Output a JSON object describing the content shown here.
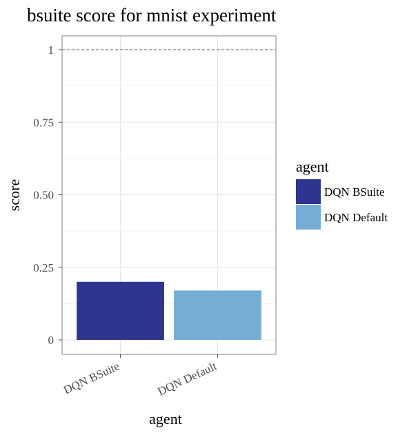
{
  "chart_data": {
    "type": "bar",
    "title": "bsuite score for mnist experiment",
    "xlabel": "agent",
    "ylabel": "score",
    "categories": [
      "DQN BSuite",
      "DQN Default"
    ],
    "values": [
      0.2,
      0.17
    ],
    "ylim": [
      0,
      1
    ],
    "yticks": [
      0,
      0.25,
      0.5,
      0.75,
      1
    ],
    "ytick_labels": [
      "0",
      "0.25",
      "0.50",
      "0.75",
      "1"
    ],
    "reference_line": 1,
    "colors": [
      "#2e3591",
      "#74aed4"
    ],
    "grid": true,
    "legend": {
      "title": "agent",
      "placement": "right",
      "entries": [
        "DQN BSuite",
        "DQN Default"
      ]
    }
  }
}
